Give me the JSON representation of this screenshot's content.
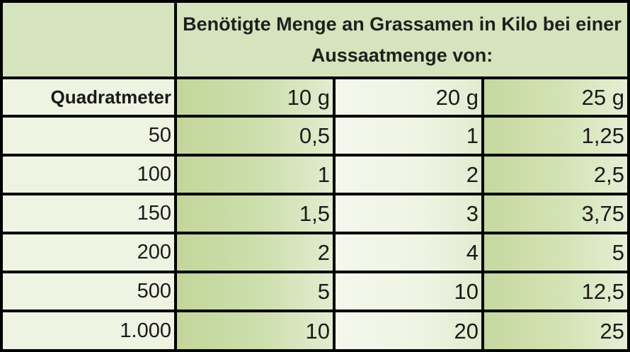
{
  "header": {
    "title": "Benötigte Menge an Grassamen in Kilo bei einer Aussaatmenge von:"
  },
  "columns": {
    "row_label": "Quadratmeter",
    "amounts": [
      "10 g",
      "20 g",
      "25 g"
    ]
  },
  "rows": [
    {
      "area": "50",
      "values": [
        "0,5",
        "1",
        "1,25"
      ]
    },
    {
      "area": "100",
      "values": [
        "1",
        "2",
        "2,5"
      ]
    },
    {
      "area": "150",
      "values": [
        "1,5",
        "3",
        "3,75"
      ]
    },
    {
      "area": "200",
      "values": [
        "2",
        "4",
        "5"
      ]
    },
    {
      "area": "500",
      "values": [
        "5",
        "10",
        "12,5"
      ]
    },
    {
      "area": "1.000",
      "values": [
        "10",
        "20",
        "25"
      ]
    }
  ]
}
